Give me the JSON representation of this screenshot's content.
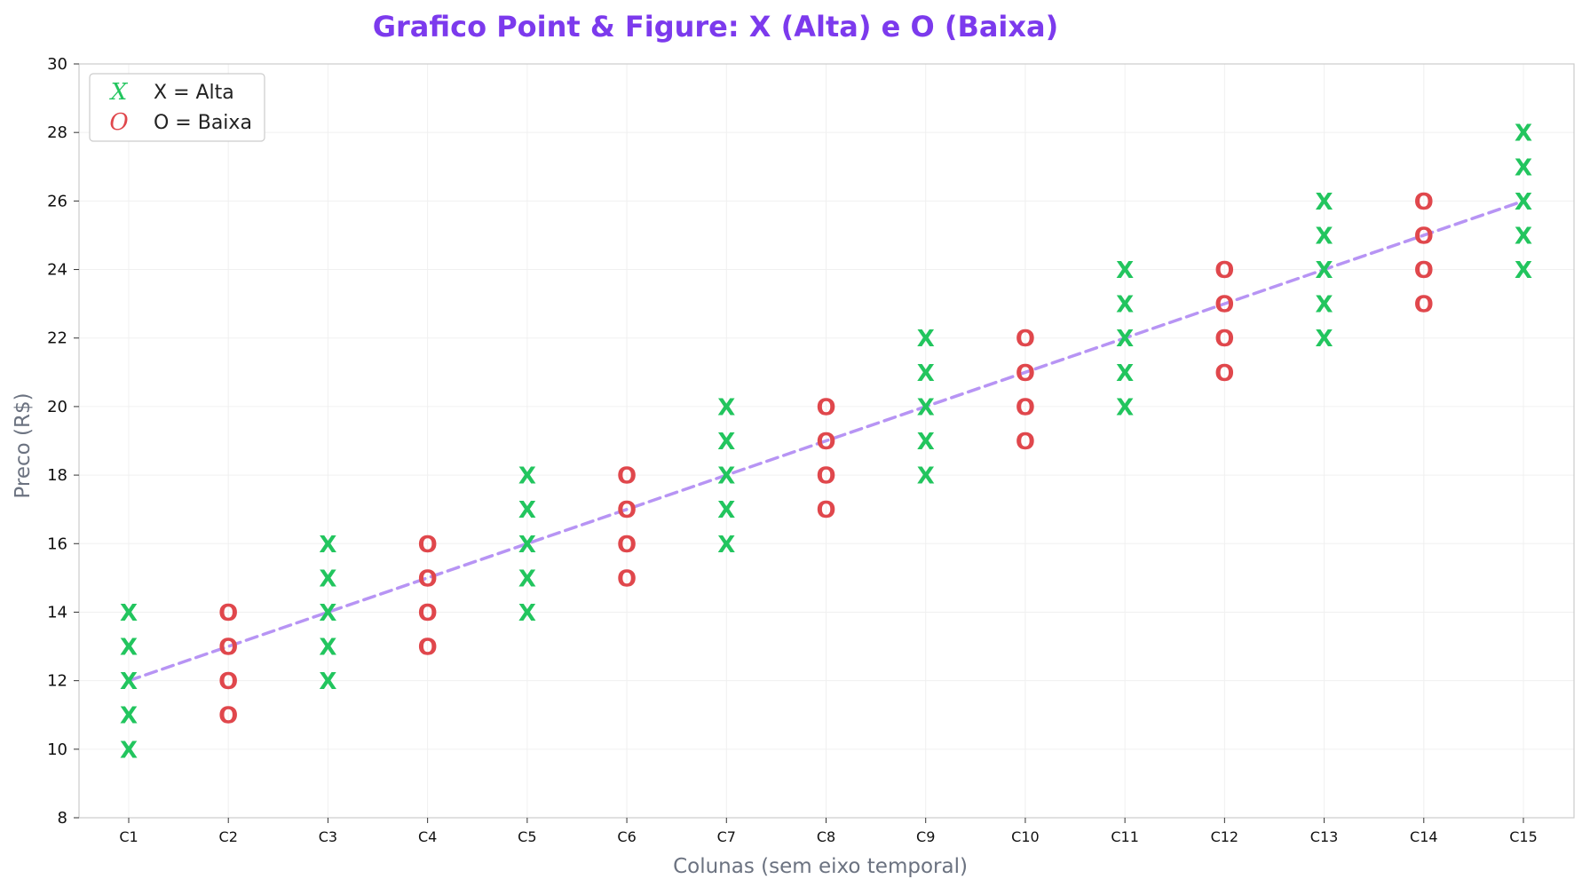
{
  "chart_data": {
    "type": "scatter",
    "title": "Grafico Point & Figure: X (Alta) e O (Baixa)",
    "xlabel": "Colunas (sem eixo temporal)",
    "ylabel": "Preco (R$)",
    "categories": [
      "C1",
      "C2",
      "C3",
      "C4",
      "C5",
      "C6",
      "C7",
      "C8",
      "C9",
      "C10",
      "C11",
      "C12",
      "C13",
      "C14",
      "C15"
    ],
    "ylim": [
      8,
      30
    ],
    "yticks": [
      8,
      10,
      12,
      14,
      16,
      18,
      20,
      22,
      24,
      26,
      28,
      30
    ],
    "grid": true,
    "legend_position": "top-left",
    "series": [
      {
        "name": "X = Alta",
        "symbol": "X",
        "color": "#22c55e",
        "columns": [
          {
            "category": "C1",
            "values": [
              10,
              11,
              12,
              13,
              14
            ]
          },
          {
            "category": "C3",
            "values": [
              12,
              13,
              14,
              15,
              16
            ]
          },
          {
            "category": "C5",
            "values": [
              14,
              15,
              16,
              17,
              18
            ]
          },
          {
            "category": "C7",
            "values": [
              16,
              17,
              18,
              19,
              20
            ]
          },
          {
            "category": "C9",
            "values": [
              18,
              19,
              20,
              21,
              22
            ]
          },
          {
            "category": "C11",
            "values": [
              20,
              21,
              22,
              23,
              24
            ]
          },
          {
            "category": "C13",
            "values": [
              22,
              23,
              24,
              25,
              26
            ]
          },
          {
            "category": "C15",
            "values": [
              24,
              25,
              26,
              27,
              28
            ]
          }
        ]
      },
      {
        "name": "O = Baixa",
        "symbol": "O",
        "color": "#e0474c",
        "columns": [
          {
            "category": "C2",
            "values": [
              11,
              12,
              13,
              14
            ]
          },
          {
            "category": "C4",
            "values": [
              13,
              14,
              15,
              16
            ]
          },
          {
            "category": "C6",
            "values": [
              15,
              16,
              17,
              18
            ]
          },
          {
            "category": "C8",
            "values": [
              17,
              18,
              19,
              20
            ]
          },
          {
            "category": "C10",
            "values": [
              19,
              20,
              21,
              22
            ]
          },
          {
            "category": "C12",
            "values": [
              21,
              22,
              23,
              24
            ]
          },
          {
            "category": "C14",
            "values": [
              23,
              24,
              25,
              26
            ]
          }
        ]
      }
    ],
    "trendline": {
      "color": "#b794f4",
      "style": "dashed",
      "start": {
        "category": "C1",
        "y": 12
      },
      "end": {
        "category": "C15",
        "y": 26
      }
    },
    "colors": {
      "title": "#7c3aed",
      "axis_label": "#6b7280",
      "spine": "#cccccc",
      "grid": "#f0f0f0"
    }
  }
}
